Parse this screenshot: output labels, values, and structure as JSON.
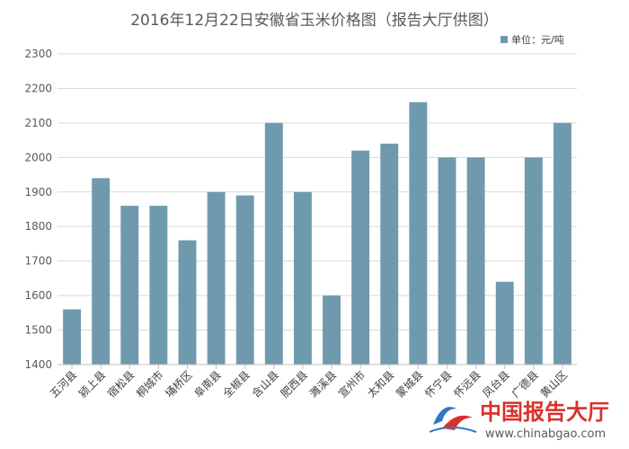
{
  "colors": {
    "bar": "#6f9aae",
    "grid": "#d9d9d9",
    "axis": "#bfbfbf",
    "watermark_red": "#d9302b",
    "watermark_blue": "#2e79c6"
  },
  "chart_data": {
    "type": "bar",
    "title": "2016年12月22日安徽省玉米价格图（报告大厅供图）",
    "legend": {
      "label": "单位：元/吨",
      "position": "top-right"
    },
    "xlabel": "",
    "ylabel": "",
    "ylim": [
      1400,
      2300
    ],
    "yticks": [
      1400,
      1500,
      1600,
      1700,
      1800,
      1900,
      2000,
      2100,
      2200,
      2300
    ],
    "grid": true,
    "categories": [
      "五河县",
      "颍上县",
      "宿松县",
      "桐城市",
      "埇桥区",
      "阜南县",
      "全椒县",
      "含山县",
      "肥西县",
      "濉溪县",
      "宣州市",
      "太和县",
      "蒙城县",
      "怀宁县",
      "怀远县",
      "凤台县",
      "广德县",
      "黄山区"
    ],
    "values": [
      1560,
      1940,
      1860,
      1860,
      1760,
      1900,
      1890,
      2100,
      1900,
      1600,
      2020,
      2040,
      2160,
      2000,
      2000,
      1640,
      2000,
      2100
    ]
  },
  "watermark": {
    "name": "中国报告大厅",
    "url": "www.chinabgao.com",
    "logo_icon": "chinabgao-logo-icon"
  }
}
